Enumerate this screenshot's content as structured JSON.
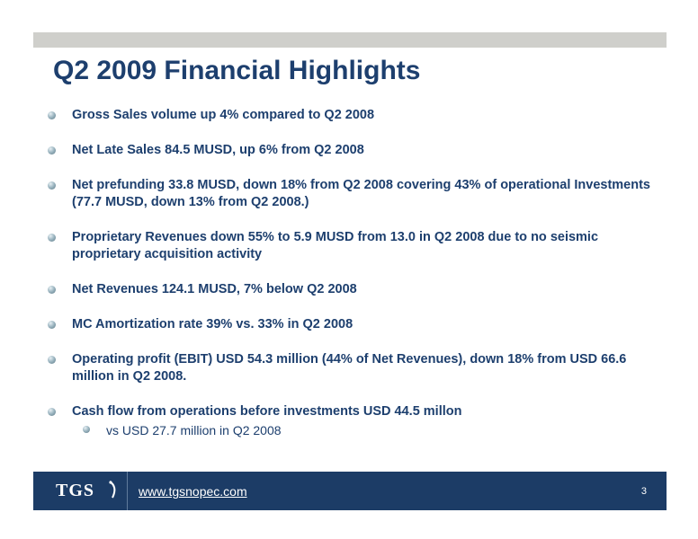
{
  "slide": {
    "title": "Q2 2009 Financial Highlights",
    "bullets": [
      "Gross Sales volume up 4% compared to Q2 2008",
      "Net Late Sales 84.5 MUSD, up 6% from Q2 2008",
      "Net prefunding 33.8 MUSD, down 18% from Q2 2008 covering 43% of operational Investments (77.7 MUSD, down 13% from Q2 2008.)",
      "Proprietary Revenues down 55% to 5.9 MUSD from 13.0 in Q2 2008 due to no seismic proprietary acquisition activity",
      "Net Revenues 124.1 MUSD, 7% below Q2 2008",
      "MC Amortization rate 39% vs. 33% in Q2 2008",
      "Operating profit (EBIT) USD 54.3 million (44% of Net Revenues), down 18% from USD 66.6 million in Q2 2008.",
      "Cash flow from operations before investments USD 44.5 millon"
    ],
    "sub_bullet": "vs USD 27.7 million in Q2 2008"
  },
  "footer": {
    "logo_text": "TGS",
    "url": "www.tgsnopec.com",
    "page_number": "3"
  },
  "colors": {
    "title": "#1d3f6e",
    "footer_bg": "#1c3c66",
    "top_band": "#cfcfcb"
  }
}
